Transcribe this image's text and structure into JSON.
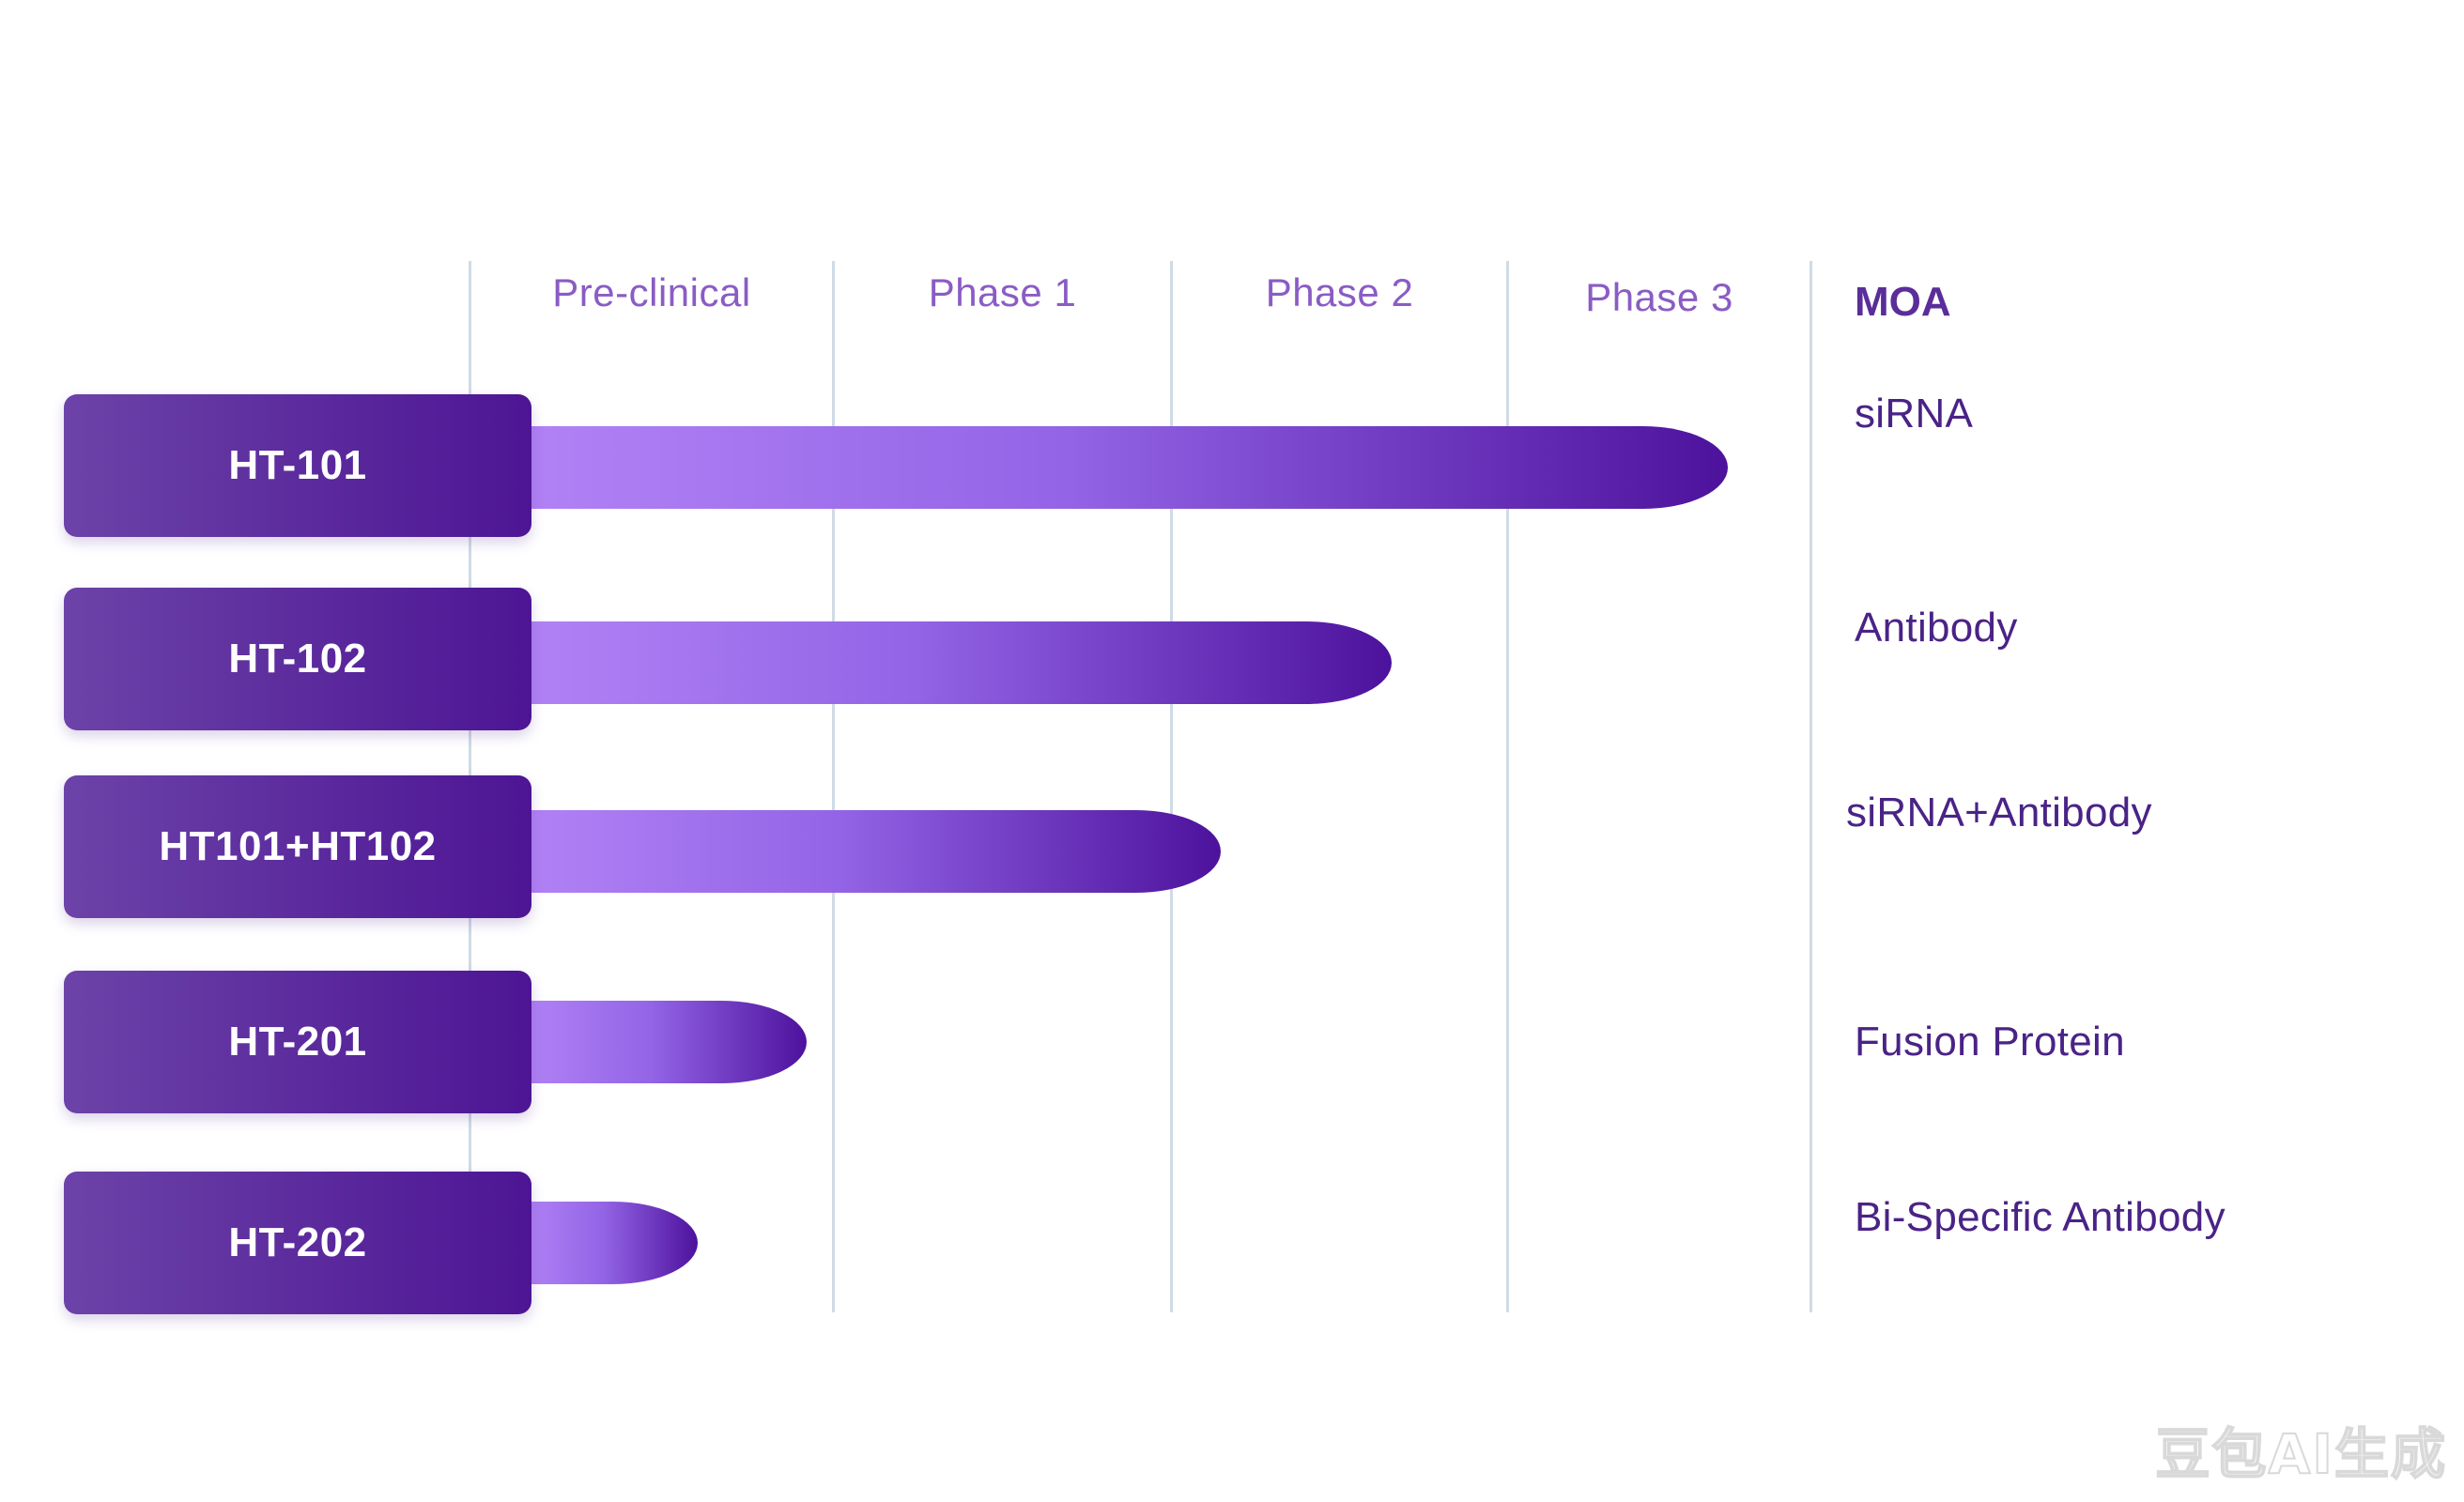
{
  "chart_data": {
    "type": "bar",
    "orientation": "horizontal",
    "phases": [
      "Pre-clinical",
      "Phase 1",
      "Phase 2",
      "Phase 3"
    ],
    "moa_header": "MOA",
    "programs": [
      {
        "name": "HT-101",
        "progress_phase_end": 3.73,
        "moa": "siRNA"
      },
      {
        "name": "HT-102",
        "progress_phase_end": 2.66,
        "moa": "Antibody"
      },
      {
        "name": "HT101+HT102",
        "progress_phase_end": 2.15,
        "moa": "siRNA+Antibody"
      },
      {
        "name": "HT-201",
        "progress_phase_end": 0.93,
        "moa": "Fusion Protein"
      },
      {
        "name": "HT-202",
        "progress_phase_end": 0.63,
        "moa": "Bi-Specific Antibody"
      }
    ],
    "colors": {
      "box": "#5a2a9e",
      "bar_start": "#b182f5",
      "bar_end": "#4d129c",
      "header": "#8a5cc4",
      "gridline": "#cfdbe6"
    }
  },
  "watermark": "豆包AI生成"
}
